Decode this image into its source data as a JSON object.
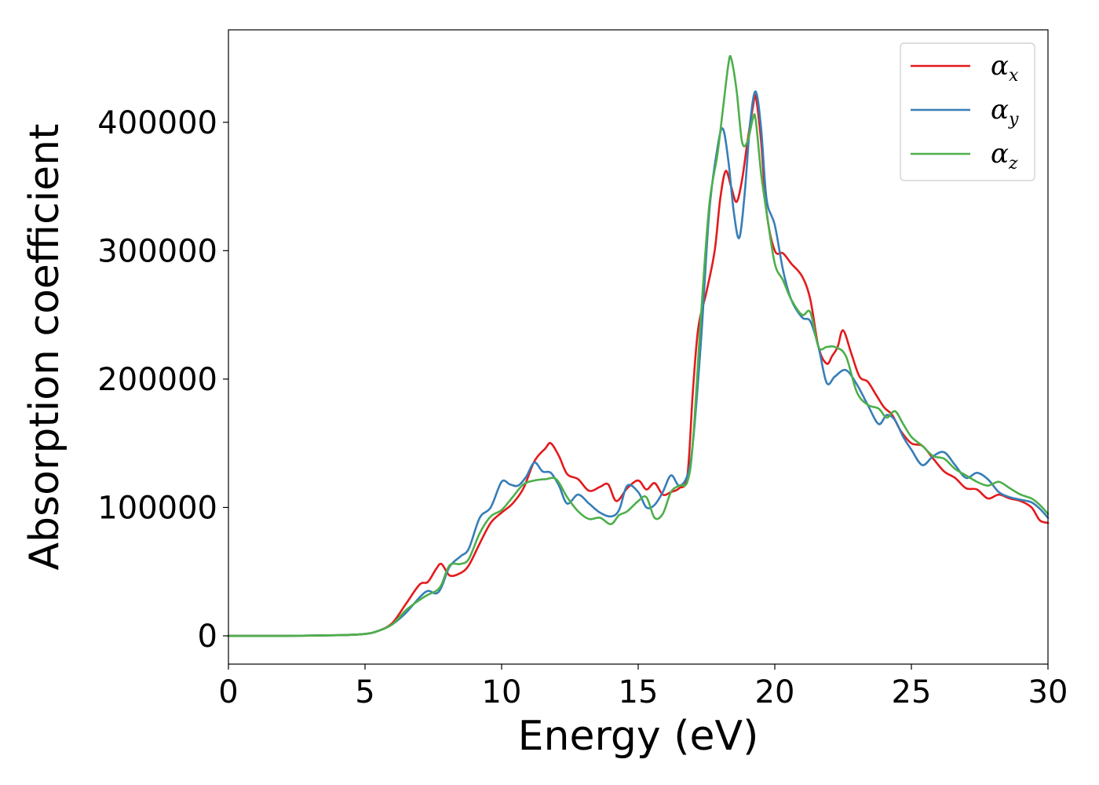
{
  "chart_data": {
    "type": "line",
    "title": "",
    "xlabel": "Energy (eV)",
    "ylabel": "Absorption coefficient",
    "xlim": [
      0,
      30
    ],
    "ylim": [
      -22000,
      472000
    ],
    "xticks": [
      0,
      5,
      10,
      15,
      20,
      25,
      30
    ],
    "xtick_labels": [
      "0",
      "5",
      "10",
      "15",
      "20",
      "25",
      "30"
    ],
    "yticks": [
      0,
      100000,
      200000,
      300000,
      400000
    ],
    "ytick_labels": [
      "0",
      "100000",
      "200000",
      "300000",
      "400000"
    ],
    "grid": false,
    "legend": "top-right",
    "series": [
      {
        "name": "α_x",
        "label_base": "α",
        "label_sub": "x",
        "color": "#e41a1c",
        "x": [
          0,
          2,
          4,
          5,
          5.5,
          6,
          6.5,
          7,
          7.3,
          7.6,
          7.8,
          8.1,
          8.5,
          8.8,
          9.2,
          9.6,
          10,
          10.4,
          10.8,
          11.2,
          11.6,
          11.8,
          12.1,
          12.4,
          12.8,
          13.2,
          13.6,
          13.9,
          14.2,
          14.6,
          15,
          15.3,
          15.6,
          15.9,
          16.2,
          16.5,
          16.8,
          17,
          17.2,
          17.5,
          17.8,
          18,
          18.2,
          18.4,
          18.6,
          18.8,
          19,
          19.2,
          19.3,
          19.5,
          19.7,
          20,
          20.3,
          20.6,
          21,
          21.3,
          21.6,
          21.9,
          22.1,
          22.3,
          22.5,
          22.8,
          23.1,
          23.4,
          23.7,
          24,
          24.3,
          24.6,
          25,
          25.4,
          25.8,
          26.2,
          26.6,
          27,
          27.4,
          27.8,
          28.2,
          28.6,
          29,
          29.4,
          29.7,
          30
        ],
        "y": [
          0,
          0,
          500,
          1500,
          4000,
          10000,
          25000,
          40000,
          42000,
          52000,
          56000,
          47000,
          49000,
          55000,
          72000,
          88000,
          96000,
          103000,
          115000,
          136000,
          146000,
          150000,
          140000,
          126000,
          122000,
          113000,
          116000,
          118000,
          105000,
          115000,
          121000,
          114000,
          119000,
          110000,
          112000,
          115000,
          125000,
          190000,
          240000,
          268000,
          300000,
          340000,
          362000,
          350000,
          338000,
          355000,
          385000,
          412000,
          420000,
          385000,
          330000,
          300000,
          298000,
          290000,
          280000,
          262000,
          225000,
          212000,
          218000,
          225000,
          238000,
          220000,
          202000,
          198000,
          188000,
          178000,
          172000,
          160000,
          150000,
          148000,
          138000,
          128000,
          123000,
          115000,
          114000,
          107000,
          110000,
          107000,
          105000,
          100000,
          90000,
          88000
        ]
      },
      {
        "name": "α_y",
        "label_base": "α",
        "label_sub": "y",
        "color": "#377eb8",
        "x": [
          0,
          2,
          4,
          5,
          5.5,
          6,
          6.5,
          7,
          7.3,
          7.6,
          7.8,
          8.1,
          8.5,
          8.8,
          9.2,
          9.6,
          10,
          10.3,
          10.6,
          10.9,
          11.2,
          11.5,
          11.8,
          12.1,
          12.4,
          12.8,
          13.2,
          13.6,
          14,
          14.3,
          14.6,
          15,
          15.3,
          15.6,
          15.9,
          16.2,
          16.5,
          16.8,
          17,
          17.3,
          17.6,
          17.9,
          18.1,
          18.3,
          18.5,
          18.7,
          18.9,
          19.1,
          19.3,
          19.5,
          19.7,
          20,
          20.3,
          20.6,
          21,
          21.3,
          21.6,
          21.9,
          22.2,
          22.6,
          23,
          23.4,
          23.8,
          24.1,
          24.4,
          24.7,
          25,
          25.4,
          25.8,
          26.2,
          26.6,
          27,
          27.4,
          27.8,
          28.2,
          28.6,
          29,
          29.4,
          29.7,
          30
        ],
        "y": [
          0,
          0,
          500,
          1500,
          4000,
          9000,
          18000,
          30000,
          35000,
          33000,
          38000,
          54000,
          62000,
          68000,
          92000,
          100000,
          120000,
          118000,
          117000,
          124000,
          135000,
          128000,
          127000,
          117000,
          103000,
          110000,
          103000,
          96000,
          93000,
          98000,
          117000,
          112000,
          100000,
          102000,
          112000,
          125000,
          117000,
          125000,
          150000,
          230000,
          330000,
          380000,
          395000,
          370000,
          330000,
          310000,
          345000,
          400000,
          424000,
          395000,
          340000,
          320000,
          285000,
          262000,
          248000,
          245000,
          225000,
          197000,
          202000,
          207000,
          196000,
          180000,
          165000,
          172000,
          168000,
          155000,
          145000,
          133000,
          140000,
          143000,
          133000,
          123000,
          127000,
          122000,
          112000,
          108000,
          106000,
          104000,
          99000,
          92000
        ]
      },
      {
        "name": "α_z",
        "label_base": "α",
        "label_sub": "z",
        "color": "#4daf4a",
        "x": [
          0,
          2,
          4,
          5,
          5.5,
          6,
          6.5,
          7,
          7.3,
          7.6,
          7.8,
          8.1,
          8.5,
          8.8,
          9.2,
          9.6,
          10,
          10.4,
          10.8,
          11.2,
          11.6,
          12,
          12.4,
          12.8,
          13.2,
          13.6,
          14,
          14.3,
          14.6,
          15,
          15.3,
          15.6,
          15.9,
          16.2,
          16.5,
          16.8,
          17,
          17.3,
          17.6,
          17.9,
          18.1,
          18.3,
          18.4,
          18.6,
          18.8,
          19,
          19.2,
          19.3,
          19.5,
          19.7,
          20,
          20.3,
          20.6,
          21,
          21.3,
          21.6,
          21.9,
          22.2,
          22.6,
          23,
          23.4,
          23.8,
          24.1,
          24.4,
          24.7,
          25,
          25.4,
          25.8,
          26.2,
          26.6,
          27,
          27.4,
          27.8,
          28.2,
          28.6,
          29,
          29.4,
          29.7,
          30
        ],
        "y": [
          0,
          0,
          500,
          1500,
          4000,
          9000,
          20000,
          28000,
          32000,
          35000,
          40000,
          55000,
          56000,
          60000,
          80000,
          93000,
          98000,
          108000,
          118000,
          121000,
          122000,
          122000,
          108000,
          97000,
          91000,
          92000,
          87000,
          94000,
          97000,
          105000,
          108000,
          92000,
          95000,
          112000,
          117000,
          120000,
          150000,
          250000,
          335000,
          375000,
          410000,
          445000,
          450000,
          425000,
          385000,
          385000,
          403000,
          402000,
          360000,
          330000,
          290000,
          277000,
          262000,
          250000,
          252000,
          225000,
          225000,
          225000,
          218000,
          190000,
          180000,
          177000,
          170000,
          175000,
          165000,
          155000,
          148000,
          140000,
          138000,
          130000,
          125000,
          120000,
          117000,
          120000,
          115000,
          110000,
          107000,
          102000,
          95000
        ]
      }
    ]
  }
}
